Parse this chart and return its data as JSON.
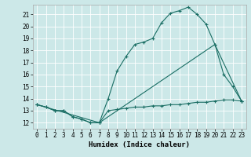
{
  "xlabel": "Humidex (Indice chaleur)",
  "bg_color": "#cce8e8",
  "grid_color": "#ffffff",
  "line_color": "#1a6e64",
  "xlim": [
    -0.5,
    23.5
  ],
  "ylim": [
    11.5,
    21.8
  ],
  "xticks": [
    0,
    1,
    2,
    3,
    4,
    5,
    6,
    7,
    8,
    9,
    10,
    11,
    12,
    13,
    14,
    15,
    16,
    17,
    18,
    19,
    20,
    21,
    22,
    23
  ],
  "yticks": [
    12,
    13,
    14,
    15,
    16,
    17,
    18,
    19,
    20,
    21
  ],
  "line1_x": [
    0,
    1,
    2,
    3,
    4,
    5,
    6,
    7,
    8,
    9,
    10,
    11,
    12,
    13,
    14,
    15,
    16,
    17,
    18,
    19,
    20,
    21,
    22,
    23
  ],
  "line1_y": [
    13.5,
    13.3,
    13.0,
    13.0,
    12.5,
    12.3,
    12.0,
    12.0,
    14.0,
    16.3,
    17.5,
    18.5,
    18.7,
    19.0,
    20.3,
    21.1,
    21.3,
    21.6,
    21.0,
    20.2,
    18.5,
    16.0,
    15.0,
    13.8
  ],
  "line2_x": [
    0,
    1,
    2,
    3,
    4,
    5,
    6,
    7,
    8,
    9,
    10,
    11,
    12,
    13,
    14,
    15,
    16,
    17,
    18,
    19,
    20,
    21,
    22,
    23
  ],
  "line2_y": [
    13.5,
    13.3,
    13.0,
    13.0,
    12.5,
    12.3,
    12.0,
    12.0,
    13.0,
    13.1,
    13.2,
    13.3,
    13.3,
    13.4,
    13.4,
    13.5,
    13.5,
    13.6,
    13.7,
    13.7,
    13.8,
    13.9,
    13.9,
    13.8
  ],
  "line3_x": [
    0,
    7,
    20,
    23
  ],
  "line3_y": [
    13.5,
    12.0,
    18.5,
    13.8
  ]
}
